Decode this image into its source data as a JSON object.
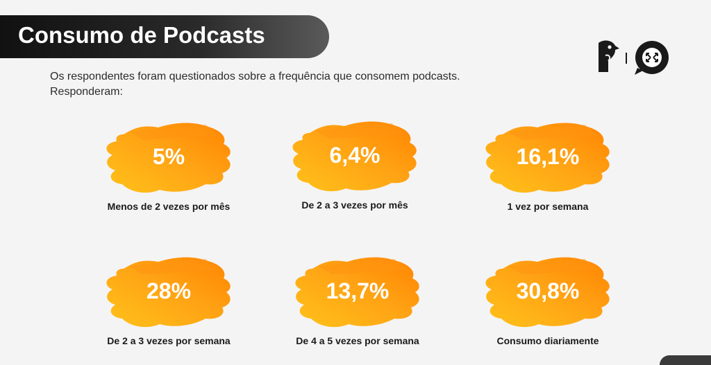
{
  "title": "Consumo de Podcasts",
  "intro": "Os respondentes foram questionados sobre a frequência que consomem podcasts. Responderam:",
  "accent_colors": {
    "brush_light": "#ffc21a",
    "brush_dark": "#ff8300",
    "title_bg": "#1b1b1b"
  },
  "logos": [
    "bird-head-logo-icon",
    "chat-bubble-logo-icon"
  ],
  "stats": [
    {
      "value": "5%",
      "label": "Menos de 2 vezes por mês"
    },
    {
      "value": "6,4%",
      "label": "De 2 a 3 vezes por mês"
    },
    {
      "value": "16,1%",
      "label": "1 vez por semana"
    },
    {
      "value": "28%",
      "label": "De 2 a 3 vezes por semana"
    },
    {
      "value": "13,7%",
      "label": "De 4 a 5 vezes por semana"
    },
    {
      "value": "30,8%",
      "label": "Consumo diariamente"
    }
  ]
}
